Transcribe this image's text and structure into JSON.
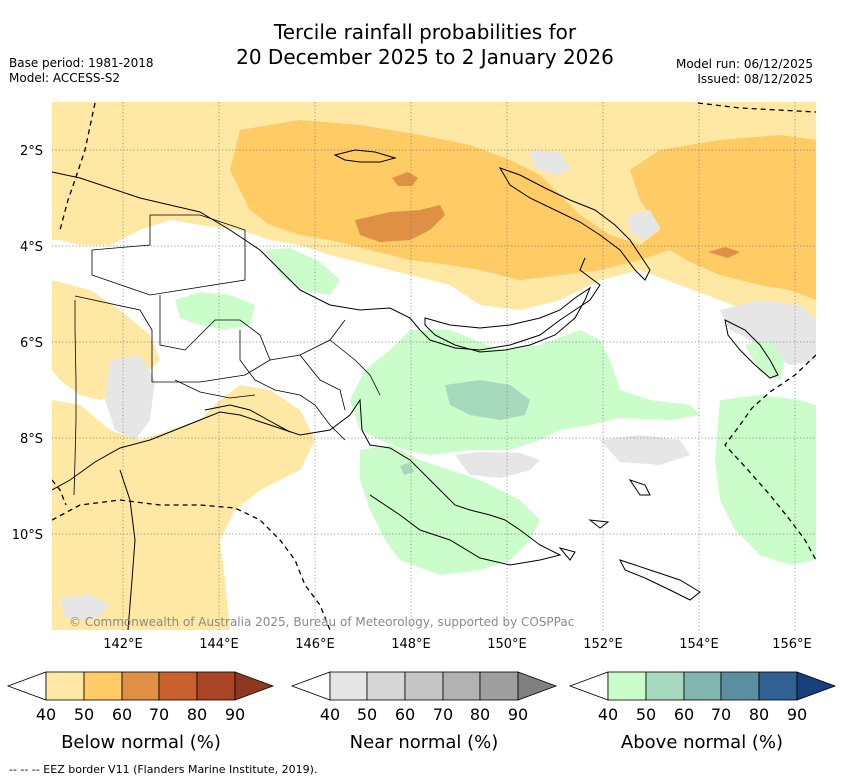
{
  "title": {
    "line1": "Tercile rainfall probabilities for",
    "line2": "20 December 2025 to 2 January 2026"
  },
  "meta": {
    "base_period": "Base period: 1981-2018",
    "model": "Model: ACCESS-S2",
    "model_run": "Model run: 06/12/2025",
    "issued": "Issued: 08/12/2025"
  },
  "map": {
    "lat_labels": [
      "2°S",
      "4°S",
      "6°S",
      "8°S",
      "10°S"
    ],
    "lon_labels": [
      "142°E",
      "144°E",
      "146°E",
      "148°E",
      "150°E",
      "152°E",
      "154°E",
      "156°E"
    ],
    "copyright": "© Commonwealth of Australia 2025, Bureau of Meteorology, supported by COSPPac"
  },
  "legends": [
    {
      "label": "Below normal (%)",
      "ticks": [
        "40",
        "50",
        "60",
        "70",
        "80",
        "90"
      ],
      "colors": [
        "#fee8a3",
        "#fecb64",
        "#df9044",
        "#c9602e",
        "#ab4525",
        "#8e3822"
      ]
    },
    {
      "label": "Near normal (%)",
      "ticks": [
        "40",
        "50",
        "60",
        "70",
        "80",
        "90"
      ],
      "colors": [
        "#e6e6e6",
        "#d6d6d6",
        "#c6c6c6",
        "#b2b2b2",
        "#9e9e9e",
        "#808080"
      ]
    },
    {
      "label": "Above normal (%)",
      "ticks": [
        "40",
        "50",
        "60",
        "70",
        "80",
        "90"
      ],
      "colors": [
        "#cafdca",
        "#a6d9bd",
        "#80b6ad",
        "#5a8ea0",
        "#2f6192",
        "#163f7c"
      ]
    }
  ],
  "footnote": "--  --  -- EEZ border V11 (Flanders Marine Institute, 2019)."
}
